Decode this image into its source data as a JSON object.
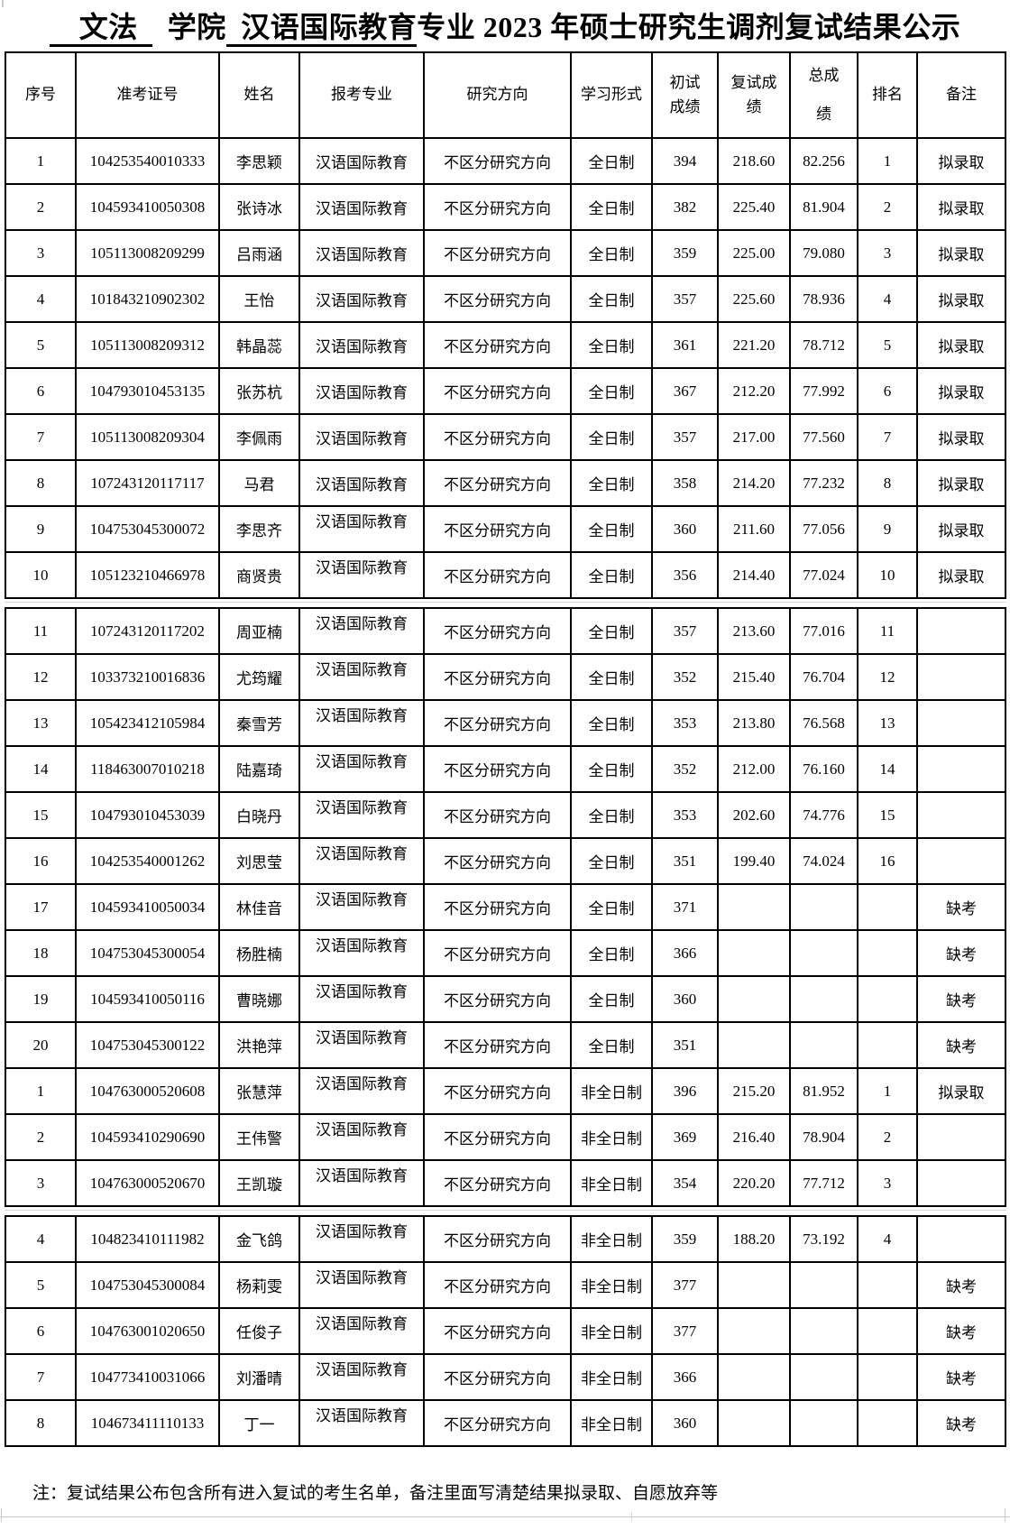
{
  "title": {
    "full_text": "文法 学院 汉语国际教育专业 2023 年硕士研究生调剂复试结果公示",
    "segments": [
      {
        "text": "  文法 ",
        "underline": true
      },
      {
        "text": " 学院",
        "underline": false
      },
      {
        "text": " 汉语国际教育",
        "underline": true
      },
      {
        "text": "专业 2023 年硕士研究生调剂复试结果公示",
        "underline": false
      }
    ]
  },
  "columns": [
    {
      "key": "no",
      "label": "序号"
    },
    {
      "key": "exam_id",
      "label": "准考证号"
    },
    {
      "key": "name",
      "label": "姓名"
    },
    {
      "key": "major",
      "label": "报考专业"
    },
    {
      "key": "direction",
      "label": "研究方向"
    },
    {
      "key": "study_form",
      "label": "学习形式"
    },
    {
      "key": "initial_score",
      "label": "初试\n成绩"
    },
    {
      "key": "retest_score",
      "label": "复试成\n绩"
    },
    {
      "key": "total_score",
      "label": "总成\n绩"
    },
    {
      "key": "rank",
      "label": "排名"
    },
    {
      "key": "note",
      "label": "备注"
    }
  ],
  "sections": [
    {
      "rows": [
        {
          "no": "1",
          "exam_id": "104253540010333",
          "name": "李思颖",
          "major": "汉语国际教育",
          "direction": "不区分研究方向",
          "study_form": "全日制",
          "initial_score": "394",
          "retest_score": "218.60",
          "total_score": "82.256",
          "rank": "1",
          "note": "拟录取",
          "major_wrap": false
        },
        {
          "no": "2",
          "exam_id": "104593410050308",
          "name": "张诗冰",
          "major": "汉语国际教育",
          "direction": "不区分研究方向",
          "study_form": "全日制",
          "initial_score": "382",
          "retest_score": "225.40",
          "total_score": "81.904",
          "rank": "2",
          "note": "拟录取",
          "major_wrap": false
        },
        {
          "no": "3",
          "exam_id": "105113008209299",
          "name": "吕雨涵",
          "major": "汉语国际教育",
          "direction": "不区分研究方向",
          "study_form": "全日制",
          "initial_score": "359",
          "retest_score": "225.00",
          "total_score": "79.080",
          "rank": "3",
          "note": "拟录取",
          "major_wrap": false
        },
        {
          "no": "4",
          "exam_id": "101843210902302",
          "name": "王怡",
          "major": "汉语国际教育",
          "direction": "不区分研究方向",
          "study_form": "全日制",
          "initial_score": "357",
          "retest_score": "225.60",
          "total_score": "78.936",
          "rank": "4",
          "note": "拟录取",
          "major_wrap": false
        },
        {
          "no": "5",
          "exam_id": "105113008209312",
          "name": "韩晶蕊",
          "major": "汉语国际教育",
          "direction": "不区分研究方向",
          "study_form": "全日制",
          "initial_score": "361",
          "retest_score": "221.20",
          "total_score": "78.712",
          "rank": "5",
          "note": "拟录取",
          "major_wrap": false
        },
        {
          "no": "6",
          "exam_id": "104793010453135",
          "name": "张苏杭",
          "major": "汉语国际教育",
          "direction": "不区分研究方向",
          "study_form": "全日制",
          "initial_score": "367",
          "retest_score": "212.20",
          "total_score": "77.992",
          "rank": "6",
          "note": "拟录取",
          "major_wrap": false
        },
        {
          "no": "7",
          "exam_id": "105113008209304",
          "name": "李佩雨",
          "major": "汉语国际教育",
          "direction": "不区分研究方向",
          "study_form": "全日制",
          "initial_score": "357",
          "retest_score": "217.00",
          "total_score": "77.560",
          "rank": "7",
          "note": "拟录取",
          "major_wrap": false
        },
        {
          "no": "8",
          "exam_id": "107243120117117",
          "name": "马君",
          "major": "汉语国际教育",
          "direction": "不区分研究方向",
          "study_form": "全日制",
          "initial_score": "358",
          "retest_score": "214.20",
          "total_score": "77.232",
          "rank": "8",
          "note": "拟录取",
          "major_wrap": false
        },
        {
          "no": "9",
          "exam_id": "104753045300072",
          "name": "李思齐",
          "major": "汉语国际教育",
          "direction": "不区分研究方向",
          "study_form": "全日制",
          "initial_score": "360",
          "retest_score": "211.60",
          "total_score": "77.056",
          "rank": "9",
          "note": "拟录取",
          "major_wrap": true
        },
        {
          "no": "10",
          "exam_id": "105123210466978",
          "name": "商贤贵",
          "major": "汉语国际教育",
          "direction": "不区分研究方向",
          "study_form": "全日制",
          "initial_score": "356",
          "retest_score": "214.40",
          "total_score": "77.024",
          "rank": "10",
          "note": "拟录取",
          "major_wrap": true
        }
      ]
    },
    {
      "rows": [
        {
          "no": "11",
          "exam_id": "107243120117202",
          "name": "周亚楠",
          "major": "汉语国际教育",
          "direction": "不区分研究方向",
          "study_form": "全日制",
          "initial_score": "357",
          "retest_score": "213.60",
          "total_score": "77.016",
          "rank": "11",
          "note": "",
          "major_wrap": true
        },
        {
          "no": "12",
          "exam_id": "103373210016836",
          "name": "尤筠耀",
          "major": "汉语国际教育",
          "direction": "不区分研究方向",
          "study_form": "全日制",
          "initial_score": "352",
          "retest_score": "215.40",
          "total_score": "76.704",
          "rank": "12",
          "note": "",
          "major_wrap": true
        },
        {
          "no": "13",
          "exam_id": "105423412105984",
          "name": "秦雪芳",
          "major": "汉语国际教育",
          "direction": "不区分研究方向",
          "study_form": "全日制",
          "initial_score": "353",
          "retest_score": "213.80",
          "total_score": "76.568",
          "rank": "13",
          "note": "",
          "major_wrap": true
        },
        {
          "no": "14",
          "exam_id": "118463007010218",
          "name": "陆嘉琦",
          "major": "汉语国际教育",
          "direction": "不区分研究方向",
          "study_form": "全日制",
          "initial_score": "352",
          "retest_score": "212.00",
          "total_score": "76.160",
          "rank": "14",
          "note": "",
          "major_wrap": true
        },
        {
          "no": "15",
          "exam_id": "104793010453039",
          "name": "白晓丹",
          "major": "汉语国际教育",
          "direction": "不区分研究方向",
          "study_form": "全日制",
          "initial_score": "353",
          "retest_score": "202.60",
          "total_score": "74.776",
          "rank": "15",
          "note": "",
          "major_wrap": true
        },
        {
          "no": "16",
          "exam_id": "104253540001262",
          "name": "刘思莹",
          "major": "汉语国际教育",
          "direction": "不区分研究方向",
          "study_form": "全日制",
          "initial_score": "351",
          "retest_score": "199.40",
          "total_score": "74.024",
          "rank": "16",
          "note": "",
          "major_wrap": true
        },
        {
          "no": "17",
          "exam_id": "104593410050034",
          "name": "林佳音",
          "major": "汉语国际教育",
          "direction": "不区分研究方向",
          "study_form": "全日制",
          "initial_score": "371",
          "retest_score": "",
          "total_score": "",
          "rank": "",
          "note": "缺考",
          "major_wrap": true
        },
        {
          "no": "18",
          "exam_id": "104753045300054",
          "name": "杨胜楠",
          "major": "汉语国际教育",
          "direction": "不区分研究方向",
          "study_form": "全日制",
          "initial_score": "366",
          "retest_score": "",
          "total_score": "",
          "rank": "",
          "note": "缺考",
          "major_wrap": true
        },
        {
          "no": "19",
          "exam_id": "104593410050116",
          "name": "曹晓娜",
          "major": "汉语国际教育",
          "direction": "不区分研究方向",
          "study_form": "全日制",
          "initial_score": "360",
          "retest_score": "",
          "total_score": "",
          "rank": "",
          "note": "缺考",
          "major_wrap": true
        },
        {
          "no": "20",
          "exam_id": "104753045300122",
          "name": "洪艳萍",
          "major": "汉语国际教育",
          "direction": "不区分研究方向",
          "study_form": "全日制",
          "initial_score": "351",
          "retest_score": "",
          "total_score": "",
          "rank": "",
          "note": "缺考",
          "major_wrap": true
        },
        {
          "no": "1",
          "exam_id": "104763000520608",
          "name": "张慧萍",
          "major": "汉语国际教育",
          "direction": "不区分研究方向",
          "study_form": "非全日制",
          "initial_score": "396",
          "retest_score": "215.20",
          "total_score": "81.952",
          "rank": "1",
          "note": "拟录取",
          "major_wrap": true
        },
        {
          "no": "2",
          "exam_id": "104593410290690",
          "name": "王伟警",
          "major": "汉语国际教育",
          "direction": "不区分研究方向",
          "study_form": "非全日制",
          "initial_score": "369",
          "retest_score": "216.40",
          "total_score": "78.904",
          "rank": "2",
          "note": "",
          "major_wrap": true
        },
        {
          "no": "3",
          "exam_id": "104763000520670",
          "name": "王凯璇",
          "major": "汉语国际教育",
          "direction": "不区分研究方向",
          "study_form": "非全日制",
          "initial_score": "354",
          "retest_score": "220.20",
          "total_score": "77.712",
          "rank": "3",
          "note": "",
          "major_wrap": true
        }
      ]
    },
    {
      "rows": [
        {
          "no": "4",
          "exam_id": "104823410111982",
          "name": "金飞鸽",
          "major": "汉语国际教育",
          "direction": "不区分研究方向",
          "study_form": "非全日制",
          "initial_score": "359",
          "retest_score": "188.20",
          "total_score": "73.192",
          "rank": "4",
          "note": "",
          "major_wrap": true
        },
        {
          "no": "5",
          "exam_id": "104753045300084",
          "name": "杨莉雯",
          "major": "汉语国际教育",
          "direction": "不区分研究方向",
          "study_form": "非全日制",
          "initial_score": "377",
          "retest_score": "",
          "total_score": "",
          "rank": "",
          "note": "缺考",
          "major_wrap": true
        },
        {
          "no": "6",
          "exam_id": "104763001020650",
          "name": "任俊子",
          "major": "汉语国际教育",
          "direction": "不区分研究方向",
          "study_form": "非全日制",
          "initial_score": "377",
          "retest_score": "",
          "total_score": "",
          "rank": "",
          "note": "缺考",
          "major_wrap": true
        },
        {
          "no": "7",
          "exam_id": "104773410031066",
          "name": "刘潘晴",
          "major": "汉语国际教育",
          "direction": "不区分研究方向",
          "study_form": "非全日制",
          "initial_score": "366",
          "retest_score": "",
          "total_score": "",
          "rank": "",
          "note": "缺考",
          "major_wrap": true
        },
        {
          "no": "8",
          "exam_id": "104673411110133",
          "name": "丁一",
          "major": "汉语国际教育",
          "direction": "不区分研究方向",
          "study_form": "非全日制",
          "initial_score": "360",
          "retest_score": "",
          "total_score": "",
          "rank": "",
          "note": "缺考",
          "major_wrap": true
        }
      ]
    }
  ],
  "footer": {
    "note": "注：复试结果公布包含所有进入复试的考生名单，备注里面写清楚结果拟录取、自愿放弃等"
  }
}
